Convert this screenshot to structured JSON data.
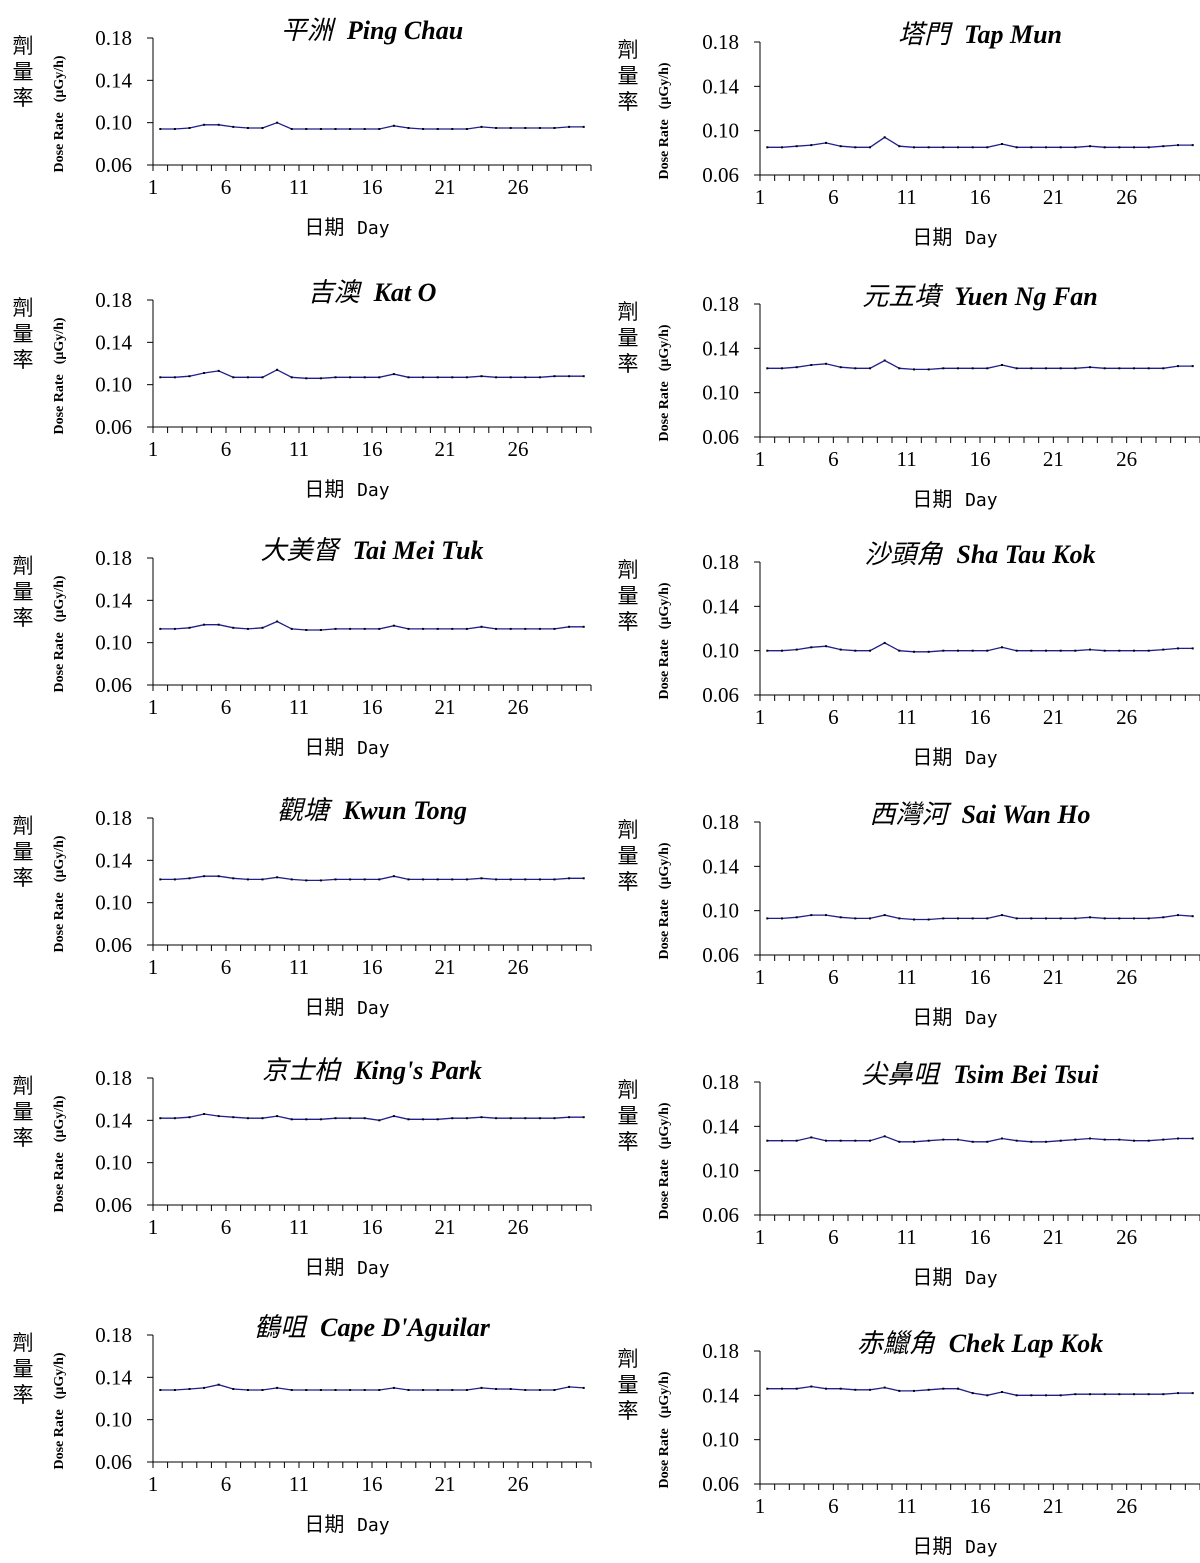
{
  "common": {
    "ylabel_zh": [
      "劑",
      "量",
      "率"
    ],
    "ylabel_en": "Dose Rate",
    "ylabel_unit": "(μGy/h)",
    "xlabel_zh": "日期",
    "xlabel_en": "Day",
    "colors": {
      "line": "#1f1f8f",
      "marker": "#000000",
      "axis": "#000000"
    }
  },
  "chart_data": [
    {
      "type": "line",
      "title_zh": "平洲",
      "title_en": "Ping Chau",
      "ylim": [
        0.06,
        0.18
      ],
      "yticks": [
        "0.18",
        "0.14",
        "0.10",
        "0.06"
      ],
      "xlim": [
        1,
        30
      ],
      "xticks": [
        1,
        6,
        11,
        16,
        21,
        26
      ],
      "series": [
        {
          "values": [
            0.094,
            0.094,
            0.095,
            0.098,
            0.098,
            0.096,
            0.095,
            0.095,
            0.1,
            0.094,
            0.094,
            0.094,
            0.094,
            0.094,
            0.094,
            0.094,
            0.097,
            0.095,
            0.094,
            0.094,
            0.094,
            0.094,
            0.096,
            0.095,
            0.095,
            0.095,
            0.095,
            0.095,
            0.096,
            0.096
          ]
        }
      ]
    },
    {
      "type": "line",
      "title_zh": "塔門",
      "title_en": "Tap Mun",
      "ylim": [
        0.06,
        0.18
      ],
      "yticks": [
        "0.18",
        "0.14",
        "0.10",
        "0.06"
      ],
      "xlim": [
        1,
        30
      ],
      "xticks": [
        1,
        6,
        11,
        16,
        21,
        26
      ],
      "series": [
        {
          "values": [
            0.085,
            0.085,
            0.086,
            0.087,
            0.089,
            0.086,
            0.085,
            0.085,
            0.094,
            0.086,
            0.085,
            0.085,
            0.085,
            0.085,
            0.085,
            0.085,
            0.088,
            0.085,
            0.085,
            0.085,
            0.085,
            0.085,
            0.086,
            0.085,
            0.085,
            0.085,
            0.085,
            0.086,
            0.087,
            0.087
          ]
        }
      ]
    },
    {
      "type": "line",
      "title_zh": "吉澳",
      "title_en": "Kat O",
      "ylim": [
        0.06,
        0.18
      ],
      "yticks": [
        "0.18",
        "0.14",
        "0.10",
        "0.06"
      ],
      "xlim": [
        1,
        30
      ],
      "xticks": [
        1,
        6,
        11,
        16,
        21,
        26
      ],
      "series": [
        {
          "values": [
            0.107,
            0.107,
            0.108,
            0.111,
            0.113,
            0.107,
            0.107,
            0.107,
            0.114,
            0.107,
            0.106,
            0.106,
            0.107,
            0.107,
            0.107,
            0.107,
            0.11,
            0.107,
            0.107,
            0.107,
            0.107,
            0.107,
            0.108,
            0.107,
            0.107,
            0.107,
            0.107,
            0.108,
            0.108,
            0.108
          ]
        }
      ]
    },
    {
      "type": "line",
      "title_zh": "元五墳",
      "title_en": "Yuen Ng Fan",
      "ylim": [
        0.06,
        0.18
      ],
      "yticks": [
        "0.18",
        "0.14",
        "0.10",
        "0.06"
      ],
      "xlim": [
        1,
        30
      ],
      "xticks": [
        1,
        6,
        11,
        16,
        21,
        26
      ],
      "series": [
        {
          "values": [
            0.122,
            0.122,
            0.123,
            0.125,
            0.126,
            0.123,
            0.122,
            0.122,
            0.129,
            0.122,
            0.121,
            0.121,
            0.122,
            0.122,
            0.122,
            0.122,
            0.125,
            0.122,
            0.122,
            0.122,
            0.122,
            0.122,
            0.123,
            0.122,
            0.122,
            0.122,
            0.122,
            0.122,
            0.124,
            0.124
          ]
        }
      ]
    },
    {
      "type": "line",
      "title_zh": "大美督",
      "title_en": "Tai Mei Tuk",
      "ylim": [
        0.06,
        0.18
      ],
      "yticks": [
        "0.18",
        "0.14",
        "0.10",
        "0.06"
      ],
      "xlim": [
        1,
        30
      ],
      "xticks": [
        1,
        6,
        11,
        16,
        21,
        26
      ],
      "series": [
        {
          "values": [
            0.113,
            0.113,
            0.114,
            0.117,
            0.117,
            0.114,
            0.113,
            0.114,
            0.12,
            0.113,
            0.112,
            0.112,
            0.113,
            0.113,
            0.113,
            0.113,
            0.116,
            0.113,
            0.113,
            0.113,
            0.113,
            0.113,
            0.115,
            0.113,
            0.113,
            0.113,
            0.113,
            0.113,
            0.115,
            0.115
          ]
        }
      ]
    },
    {
      "type": "line",
      "title_zh": "沙頭角",
      "title_en": "Sha Tau Kok",
      "ylim": [
        0.06,
        0.18
      ],
      "yticks": [
        "0.18",
        "0.14",
        "0.10",
        "0.06"
      ],
      "xlim": [
        1,
        30
      ],
      "xticks": [
        1,
        6,
        11,
        16,
        21,
        26
      ],
      "series": [
        {
          "values": [
            0.1,
            0.1,
            0.101,
            0.103,
            0.104,
            0.101,
            0.1,
            0.1,
            0.107,
            0.1,
            0.099,
            0.099,
            0.1,
            0.1,
            0.1,
            0.1,
            0.103,
            0.1,
            0.1,
            0.1,
            0.1,
            0.1,
            0.101,
            0.1,
            0.1,
            0.1,
            0.1,
            0.101,
            0.102,
            0.102
          ]
        }
      ]
    },
    {
      "type": "line",
      "title_zh": "觀塘",
      "title_en": "Kwun Tong",
      "ylim": [
        0.06,
        0.18
      ],
      "yticks": [
        "0.18",
        "0.14",
        "0.10",
        "0.06"
      ],
      "xlim": [
        1,
        30
      ],
      "xticks": [
        1,
        6,
        11,
        16,
        21,
        26
      ],
      "series": [
        {
          "values": [
            0.122,
            0.122,
            0.123,
            0.125,
            0.125,
            0.123,
            0.122,
            0.122,
            0.124,
            0.122,
            0.121,
            0.121,
            0.122,
            0.122,
            0.122,
            0.122,
            0.125,
            0.122,
            0.122,
            0.122,
            0.122,
            0.122,
            0.123,
            0.122,
            0.122,
            0.122,
            0.122,
            0.122,
            0.123,
            0.123
          ]
        }
      ]
    },
    {
      "type": "line",
      "title_zh": "西灣河",
      "title_en": "Sai Wan Ho",
      "ylim": [
        0.06,
        0.18
      ],
      "yticks": [
        "0.18",
        "0.14",
        "0.10",
        "0.06"
      ],
      "xlim": [
        1,
        30
      ],
      "xticks": [
        1,
        6,
        11,
        16,
        21,
        26
      ],
      "series": [
        {
          "values": [
            0.093,
            0.093,
            0.094,
            0.096,
            0.096,
            0.094,
            0.093,
            0.093,
            0.096,
            0.093,
            0.092,
            0.092,
            0.093,
            0.093,
            0.093,
            0.093,
            0.096,
            0.093,
            0.093,
            0.093,
            0.093,
            0.093,
            0.094,
            0.093,
            0.093,
            0.093,
            0.093,
            0.094,
            0.096,
            0.095
          ]
        }
      ]
    },
    {
      "type": "line",
      "title_zh": "京士柏",
      "title_en": "King's Park",
      "ylim": [
        0.06,
        0.18
      ],
      "yticks": [
        "0.18",
        "0.14",
        "0.10",
        "0.06"
      ],
      "xlim": [
        1,
        30
      ],
      "xticks": [
        1,
        6,
        11,
        16,
        21,
        26
      ],
      "series": [
        {
          "values": [
            0.142,
            0.142,
            0.143,
            0.146,
            0.144,
            0.143,
            0.142,
            0.142,
            0.144,
            0.141,
            0.141,
            0.141,
            0.142,
            0.142,
            0.142,
            0.14,
            0.144,
            0.141,
            0.141,
            0.141,
            0.142,
            0.142,
            0.143,
            0.142,
            0.142,
            0.142,
            0.142,
            0.142,
            0.143,
            0.143
          ]
        }
      ]
    },
    {
      "type": "line",
      "title_zh": "尖鼻咀",
      "title_en": "Tsim Bei Tsui",
      "ylim": [
        0.06,
        0.18
      ],
      "yticks": [
        "0.18",
        "0.14",
        "0.10",
        "0.06"
      ],
      "xlim": [
        1,
        30
      ],
      "xticks": [
        1,
        6,
        11,
        16,
        21,
        26
      ],
      "series": [
        {
          "values": [
            0.127,
            0.127,
            0.127,
            0.13,
            0.127,
            0.127,
            0.127,
            0.127,
            0.131,
            0.126,
            0.126,
            0.127,
            0.128,
            0.128,
            0.126,
            0.126,
            0.129,
            0.127,
            0.126,
            0.126,
            0.127,
            0.128,
            0.129,
            0.128,
            0.128,
            0.127,
            0.127,
            0.128,
            0.129,
            0.129
          ]
        }
      ]
    },
    {
      "type": "line",
      "title_zh": "鶴咀",
      "title_en": "Cape D'Aguilar",
      "ylim": [
        0.06,
        0.18
      ],
      "yticks": [
        "0.18",
        "0.14",
        "0.10",
        "0.06"
      ],
      "xlim": [
        1,
        30
      ],
      "xticks": [
        1,
        6,
        11,
        16,
        21,
        26
      ],
      "series": [
        {
          "values": [
            0.128,
            0.128,
            0.129,
            0.13,
            0.133,
            0.129,
            0.128,
            0.128,
            0.13,
            0.128,
            0.128,
            0.128,
            0.128,
            0.128,
            0.128,
            0.128,
            0.13,
            0.128,
            0.128,
            0.128,
            0.128,
            0.128,
            0.13,
            0.129,
            0.129,
            0.128,
            0.128,
            0.128,
            0.131,
            0.13
          ]
        }
      ]
    },
    {
      "type": "line",
      "title_zh": "赤鱲角",
      "title_en": "Chek Lap Kok",
      "ylim": [
        0.06,
        0.18
      ],
      "yticks": [
        "0.18",
        "0.14",
        "0.10",
        "0.06"
      ],
      "xlim": [
        1,
        30
      ],
      "xticks": [
        1,
        6,
        11,
        16,
        21,
        26
      ],
      "series": [
        {
          "values": [
            0.146,
            0.146,
            0.146,
            0.148,
            0.146,
            0.146,
            0.145,
            0.145,
            0.147,
            0.144,
            0.144,
            0.145,
            0.146,
            0.146,
            0.142,
            0.14,
            0.143,
            0.14,
            0.14,
            0.14,
            0.14,
            0.141,
            0.141,
            0.141,
            0.141,
            0.141,
            0.141,
            0.141,
            0.142,
            0.142
          ]
        }
      ]
    }
  ]
}
